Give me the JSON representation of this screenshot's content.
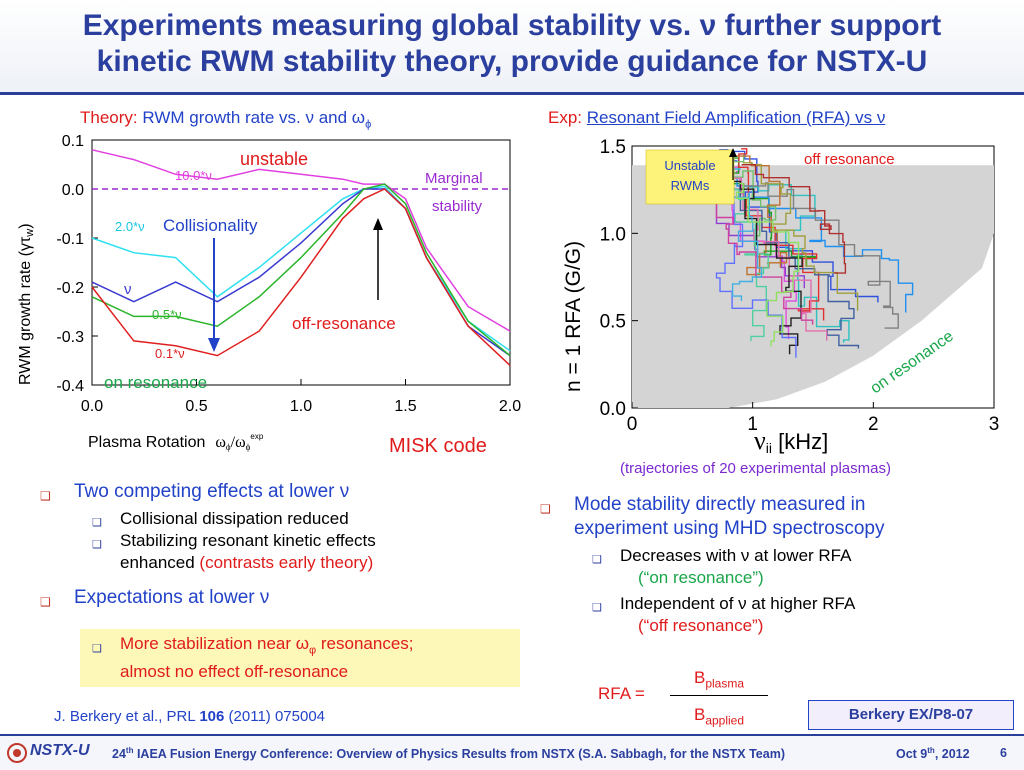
{
  "title": {
    "line1": "Experiments measuring global stability vs. ν further support",
    "line2": "kinetic RWM stability theory, provide guidance for NSTX-U"
  },
  "left_panel": {
    "caption_prefix": "Theory:",
    "caption_text": "RWM growth rate vs. ν and ω",
    "caption_sub": "ϕ"
  },
  "right_panel": {
    "caption_prefix": "Exp:",
    "caption_text": "Resonant Field Amplification (RFA) vs ν",
    "trajectories_note": "(trajectories of 20 experimental plasmas)"
  },
  "chart_data": [
    {
      "type": "line",
      "x": [
        0.0,
        0.2,
        0.4,
        0.6,
        0.8,
        1.0,
        1.2,
        1.3,
        1.4,
        1.5,
        1.6,
        1.8,
        2.0
      ],
      "series": [
        {
          "name": "10.0*ν",
          "color": "#e040e0",
          "values": [
            0.08,
            0.06,
            0.03,
            0.02,
            0.04,
            0.03,
            0.02,
            0.01,
            0.01,
            -0.02,
            -0.12,
            -0.24,
            -0.29
          ]
        },
        {
          "name": "2.0*ν",
          "color": "#2fe0f0",
          "values": [
            -0.1,
            -0.13,
            -0.14,
            -0.22,
            -0.16,
            -0.09,
            -0.02,
            0.0,
            0.005,
            -0.04,
            -0.14,
            -0.27,
            -0.33
          ]
        },
        {
          "name": "ν",
          "color": "#3a3ad0",
          "values": [
            -0.19,
            -0.23,
            -0.19,
            -0.23,
            -0.18,
            -0.11,
            -0.03,
            0.0,
            0.0,
            -0.04,
            -0.14,
            -0.28,
            -0.34
          ]
        },
        {
          "name": "0.5*ν",
          "color": "#2ab52a",
          "values": [
            -0.22,
            -0.26,
            -0.26,
            -0.28,
            -0.22,
            -0.14,
            -0.05,
            0.0,
            0.01,
            -0.03,
            -0.13,
            -0.27,
            -0.34
          ]
        },
        {
          "name": "0.1*ν",
          "color": "#e02020",
          "values": [
            -0.2,
            -0.31,
            -0.32,
            -0.34,
            -0.29,
            -0.18,
            -0.06,
            -0.02,
            0.0,
            -0.04,
            -0.14,
            -0.28,
            -0.36
          ]
        }
      ],
      "xticks": [
        "0.0",
        "0.5",
        "1.0",
        "1.5",
        "2.0"
      ],
      "yticks": [
        "0.1",
        "0.0",
        "-0.1",
        "-0.2",
        "-0.3",
        "-0.4"
      ],
      "xlim": [
        0,
        2.0
      ],
      "ylim": [
        -0.4,
        0.1
      ],
      "ylabel": "RWM growth rate (γτ",
      "ylabel_sub": "w",
      "ylabel_end": ")",
      "xlabel": "Plasma Rotation",
      "xlabel_expr": "ω",
      "xlabel_sub1": "ϕ",
      "xlabel_mid": "/ω",
      "xlabel_sub2": "ϕ",
      "xlabel_sup": "exp",
      "marginal_level": 0.0,
      "annotations": {
        "unstable": "unstable",
        "marginal_line1": "Marginal",
        "marginal_line2": "stability",
        "collisionality": "Collisionality",
        "off_resonance": "off-resonance",
        "on_resonance": "on resonance",
        "misk": "MISK code"
      }
    },
    {
      "type": "line",
      "xticks": [
        "0",
        "1",
        "2",
        "3"
      ],
      "yticks": [
        "1.5",
        "1.0",
        "0.5",
        "0.0"
      ],
      "xlim": [
        0,
        3
      ],
      "ylim": [
        0,
        1.5
      ],
      "ylabel": "n = 1 RFA (G/G)",
      "xlabel_main": "ν",
      "xlabel_sub": "ii",
      "xlabel_unit": " [kHz]",
      "series_count": 20,
      "annotations": {
        "unstable_rwms_line1": "Unstable",
        "unstable_rwms_line2": "RWMs",
        "off_resonance": "off resonance",
        "on_resonance": "on resonance"
      }
    }
  ],
  "left_bullets": {
    "b1": "Two competing effects at lower ν",
    "b1_sub1": "Collisional dissipation reduced",
    "b1_sub2": "Stabilizing resonant kinetic effects",
    "b1_sub2_cont": "enhanced",
    "b1_sub2_red": "(contrasts early theory)",
    "b2": "Expectations at lower ν",
    "b2_sub1_a": "More stabilization near ω",
    "b2_sub1_sub": "φ",
    "b2_sub1_b": " resonances;",
    "b2_sub1_line2": "almost no effect off-resonance"
  },
  "right_bullets": {
    "b1_line1": "Mode stability directly measured in",
    "b1_line2": "experiment using MHD spectroscopy",
    "s1": "Decreases with ν at lower RFA",
    "s1_note": "(“on resonance”)",
    "s2": "Independent of ν at higher RFA",
    "s2_note": "(“off resonance”)"
  },
  "formula": {
    "lhs": "RFA =",
    "num": "B",
    "num_sub": "plasma",
    "den": "B",
    "den_sub": "applied"
  },
  "citation": {
    "text": "J. Berkery et al., PRL",
    "volume": "106",
    "rest": "(2011) 075004"
  },
  "badge": "Berkery EX/P8-07",
  "footer": {
    "logo": "NSTX-U",
    "text_pre": "24",
    "text_sup": "th",
    "text_main": " IAEA Fusion Energy Conference: Overview of Physics Results from NSTX (S.A. Sabbagh, for the NSTX Team)",
    "date_pre": "Oct 9",
    "date_sup": "th",
    "date_post": ", 2012",
    "page": "6"
  },
  "colors": {
    "title_blue": "#2b3f9e",
    "bullet_blue": "#2242c8",
    "accent_red": "#e01b1b",
    "on_resonance_green": "#1aa64a",
    "highlight_yellow": "#fdf7b8"
  }
}
